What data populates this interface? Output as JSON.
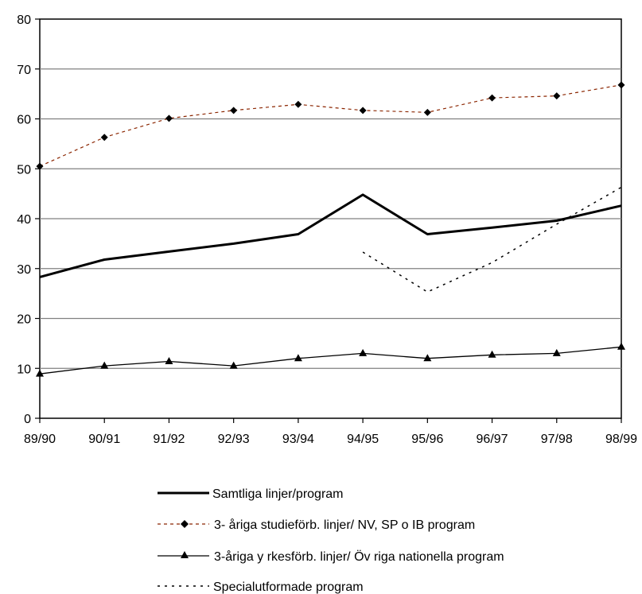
{
  "chart_data": {
    "type": "line",
    "title": "",
    "xlabel": "",
    "ylabel": "",
    "ylim": [
      0,
      80
    ],
    "yticks": [
      0,
      10,
      20,
      30,
      40,
      50,
      60,
      70,
      80
    ],
    "grid": true,
    "legend_position": "bottom",
    "categories": [
      "89/90",
      "90/91",
      "91/92",
      "92/93",
      "93/94",
      "94/95",
      "95/96",
      "96/97",
      "97/98",
      "98/99"
    ],
    "series": [
      {
        "name": "Samtliga linjer/program",
        "values": [
          28.3,
          31.8,
          33.4,
          35.0,
          36.9,
          44.8,
          36.9,
          38.2,
          39.6,
          42.6
        ],
        "color": "#000000",
        "style": "solid-thick",
        "marker": "none"
      },
      {
        "name": "3- åriga studieförb. linjer/ NV, SP o IB program",
        "values": [
          50.5,
          56.3,
          60.1,
          61.7,
          62.9,
          61.7,
          61.3,
          64.2,
          64.6,
          66.8
        ],
        "color": "#8b2500",
        "style": "dashed",
        "marker": "diamond"
      },
      {
        "name": "3-åriga  y rkesförb. linjer/ Öv riga nationella program",
        "values": [
          8.9,
          10.5,
          11.4,
          10.5,
          12.0,
          13.0,
          12.0,
          12.7,
          13.0,
          14.3
        ],
        "color": "#000000",
        "style": "solid-thin",
        "marker": "triangle"
      },
      {
        "name": "Specialutformade program",
        "values": [
          null,
          null,
          null,
          null,
          null,
          33.3,
          25.3,
          31.2,
          38.9,
          46.3
        ],
        "color": "#000000",
        "style": "dotted",
        "marker": "none"
      }
    ]
  }
}
